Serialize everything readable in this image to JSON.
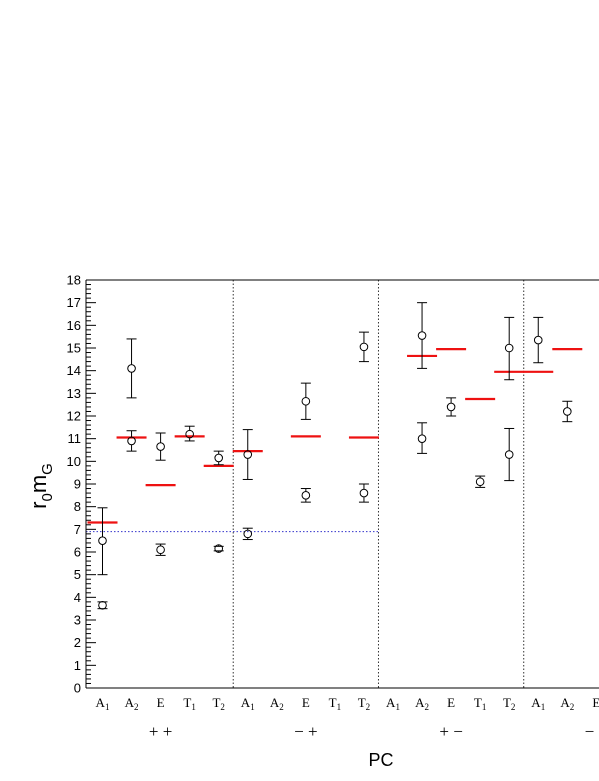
{
  "chart_data": {
    "type": "scatter",
    "xlabel": "PC",
    "ylabel": "r0mG",
    "ylabel_parts": {
      "main": "r",
      "sub": "0",
      "main2": "m",
      "sub2": "G"
    },
    "ylim": [
      0,
      18
    ],
    "y_ticks": [
      "0",
      "1",
      "2",
      "3",
      "4",
      "5",
      "6",
      "7",
      "8",
      "9",
      "10",
      "11",
      "12",
      "13",
      "14",
      "15",
      "16",
      "17",
      "18"
    ],
    "grid": false,
    "dotted_reference_y": 6.9,
    "groups": [
      {
        "label": "+ +",
        "channels": [
          "A1",
          "A2",
          "E",
          "T1",
          "T2"
        ],
        "points": [
          {
            "channel": "A1",
            "value": 3.65,
            "err_low": 0.15,
            "err_high": 0.15
          },
          {
            "channel": "A1",
            "value": 6.5,
            "err_low": 1.5,
            "err_high": 1.45
          },
          {
            "channel": "A2",
            "value": 10.9,
            "err_low": 0.45,
            "err_high": 0.45
          },
          {
            "channel": "A2",
            "value": 14.1,
            "err_low": 1.3,
            "err_high": 1.3
          },
          {
            "channel": "E",
            "value": 6.1,
            "err_low": 0.25,
            "err_high": 0.25
          },
          {
            "channel": "E",
            "value": 10.65,
            "err_low": 0.6,
            "err_high": 0.6
          },
          {
            "channel": "T1",
            "value": 11.2,
            "err_low": 0.3,
            "err_high": 0.35
          },
          {
            "channel": "T2",
            "value": 6.15,
            "err_low": 0.1,
            "err_high": 0.1
          },
          {
            "channel": "T2",
            "value": 10.15,
            "err_low": 0.3,
            "err_high": 0.3
          }
        ],
        "red_lines": [
          {
            "channel": "A1",
            "value": 7.3
          },
          {
            "channel": "A2",
            "value": 11.05
          },
          {
            "channel": "E",
            "value": 8.95
          },
          {
            "channel": "T1",
            "value": 11.1
          },
          {
            "channel": "T2",
            "value": 9.8
          }
        ]
      },
      {
        "label": "− +",
        "channels": [
          "A1",
          "A2",
          "E",
          "T1",
          "T2"
        ],
        "points": [
          {
            "channel": "A1",
            "value": 6.8,
            "err_low": 0.25,
            "err_high": 0.25
          },
          {
            "channel": "A1",
            "value": 10.3,
            "err_low": 1.1,
            "err_high": 1.1
          },
          {
            "channel": "E",
            "value": 8.5,
            "err_low": 0.3,
            "err_high": 0.3
          },
          {
            "channel": "E",
            "value": 12.65,
            "err_low": 0.8,
            "err_high": 0.8
          },
          {
            "channel": "T2",
            "value": 8.6,
            "err_low": 0.4,
            "err_high": 0.4
          },
          {
            "channel": "T2",
            "value": 15.05,
            "err_low": 0.65,
            "err_high": 0.65
          }
        ],
        "red_lines": [
          {
            "channel": "A1",
            "value": 10.45
          },
          {
            "channel": "E",
            "value": 11.1
          },
          {
            "channel": "T2",
            "value": 11.05
          }
        ]
      },
      {
        "label": "+ −",
        "channels": [
          "A1",
          "A2",
          "E",
          "T1",
          "T2"
        ],
        "points": [
          {
            "channel": "A2",
            "value": 11.0,
            "err_low": 0.65,
            "err_high": 0.7
          },
          {
            "channel": "A2",
            "value": 15.55,
            "err_low": 1.45,
            "err_high": 1.45
          },
          {
            "channel": "E",
            "value": 12.4,
            "err_low": 0.4,
            "err_high": 0.4
          },
          {
            "channel": "T1",
            "value": 9.1,
            "err_low": 0.25,
            "err_high": 0.25
          },
          {
            "channel": "T2",
            "value": 10.3,
            "err_low": 1.15,
            "err_high": 1.15
          },
          {
            "channel": "T2",
            "value": 15.0,
            "err_low": 1.4,
            "err_high": 1.35
          }
        ],
        "red_lines": [
          {
            "channel": "A2",
            "value": 14.65
          },
          {
            "channel": "E",
            "value": 14.95
          },
          {
            "channel": "T1",
            "value": 12.75
          },
          {
            "channel": "T2",
            "value": 13.95
          }
        ]
      },
      {
        "label": "− −",
        "channels": [
          "A1",
          "A2",
          "E"
        ],
        "points": [
          {
            "channel": "A1",
            "value": 15.35,
            "err_low": 1.0,
            "err_high": 1.0
          },
          {
            "channel": "A2",
            "value": 12.2,
            "err_low": 0.45,
            "err_high": 0.45
          }
        ],
        "red_lines": [
          {
            "channel": "A1",
            "value": 13.95
          },
          {
            "channel": "A2",
            "value": 14.95
          }
        ]
      }
    ],
    "colors": {
      "markers": "#000000",
      "model_lines": "#ee1111",
      "reference_line": "#3333cc",
      "separators": "#333333"
    }
  }
}
